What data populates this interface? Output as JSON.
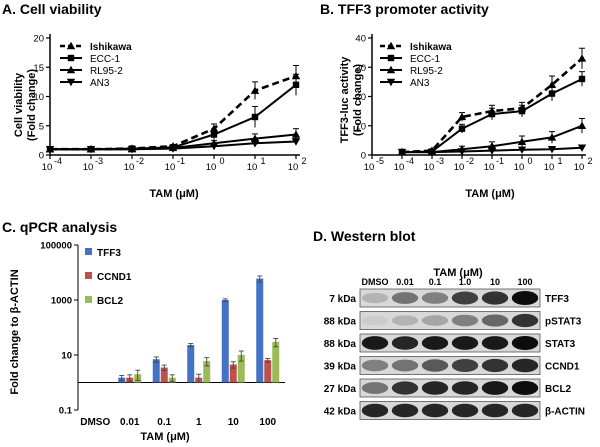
{
  "chart_data": [
    {
      "panel": "A",
      "type": "line",
      "title": "A. Cell viability",
      "xlabel": "TAM (μM)",
      "ylabel_line1": "Cell viability",
      "ylabel_line2": "(Fold change)",
      "xscale": "log",
      "x": [
        0.0001,
        0.001,
        0.01,
        0.1,
        1,
        10,
        100
      ],
      "xticks": [
        "10",
        "10",
        "10",
        "10",
        "10",
        "10",
        "10"
      ],
      "xtick_exps": [
        "-4",
        "-3",
        "-2",
        "-1",
        "0",
        "1",
        "2"
      ],
      "ylim": [
        0,
        20
      ],
      "yticks": [
        "0",
        "5",
        "10",
        "15",
        "20"
      ],
      "legend_position": "top-left",
      "series": [
        {
          "name": "Ishikawa",
          "style": "dashed",
          "marker": "triangle",
          "values": [
            1.0,
            1.0,
            1.1,
            1.5,
            4.5,
            11.0,
            13.5
          ],
          "errors": [
            0.2,
            0.2,
            0.2,
            0.3,
            0.8,
            1.5,
            1.8
          ]
        },
        {
          "name": "ECC-1",
          "style": "solid",
          "marker": "square",
          "values": [
            1.0,
            1.0,
            1.1,
            1.3,
            3.5,
            6.5,
            12.0
          ],
          "errors": [
            0.2,
            0.2,
            0.2,
            0.3,
            0.8,
            1.8,
            1.8
          ]
        },
        {
          "name": "RL95-2",
          "style": "solid",
          "marker": "triangle",
          "values": [
            1.0,
            1.0,
            1.0,
            1.2,
            2.0,
            2.8,
            3.5
          ],
          "errors": [
            0.2,
            0.2,
            0.2,
            0.3,
            0.5,
            0.8,
            1.0
          ]
        },
        {
          "name": "AN3",
          "style": "solid",
          "marker": "triangle-down",
          "values": [
            1.0,
            1.0,
            1.0,
            1.1,
            1.5,
            2.0,
            2.3
          ],
          "errors": [
            0.2,
            0.2,
            0.2,
            0.2,
            0.3,
            0.4,
            0.5
          ]
        }
      ]
    },
    {
      "panel": "B",
      "type": "line",
      "title": "B. TFF3 promoter activity",
      "xlabel": "TAM (μM)",
      "ylabel_line1": "TFF3-luc activity",
      "ylabel_line2": "(Fold change)",
      "xscale": "log",
      "x": [
        0.0001,
        0.001,
        0.01,
        0.1,
        1,
        10,
        100
      ],
      "xtick_values": [
        -5,
        -4,
        -3,
        -2,
        -1,
        0,
        1,
        2
      ],
      "xticks": [
        "10",
        "10",
        "10",
        "10",
        "10",
        "10",
        "10",
        "10"
      ],
      "xtick_exps": [
        "-5",
        "-4",
        "-3",
        "-2",
        "-1",
        "0",
        "1",
        "2"
      ],
      "ylim": [
        0,
        40
      ],
      "yticks": [
        "0",
        "10",
        "20",
        "30",
        "40"
      ],
      "legend_position": "top-left",
      "series": [
        {
          "name": "Ishikawa",
          "style": "dashed",
          "marker": "triangle",
          "values": [
            1.0,
            1.5,
            13.0,
            15.0,
            16.0,
            24.0,
            33.0
          ],
          "errors": [
            0.3,
            0.5,
            1.5,
            2.0,
            2.0,
            3.0,
            3.5
          ]
        },
        {
          "name": "ECC-1",
          "style": "solid",
          "marker": "square",
          "values": [
            1.0,
            1.2,
            9.0,
            14.0,
            15.0,
            21.0,
            26.0
          ],
          "errors": [
            0.3,
            0.4,
            1.5,
            2.0,
            2.0,
            2.5,
            2.5
          ]
        },
        {
          "name": "RL95-2",
          "style": "solid",
          "marker": "triangle",
          "values": [
            1.0,
            1.0,
            2.0,
            3.0,
            4.5,
            6.0,
            10.0
          ],
          "errors": [
            0.3,
            0.3,
            1.0,
            1.5,
            2.0,
            2.0,
            2.5
          ]
        },
        {
          "name": "AN3",
          "style": "solid",
          "marker": "triangle-down",
          "values": [
            1.0,
            1.0,
            1.2,
            1.5,
            1.8,
            2.0,
            2.5
          ],
          "errors": [
            0.2,
            0.2,
            0.3,
            0.4,
            0.5,
            0.5,
            0.6
          ]
        }
      ]
    },
    {
      "panel": "C",
      "type": "bar",
      "title": "C. qPCR analysis",
      "xlabel": "TAM (μM)",
      "ylabel": "Fold change to β-ACTIN",
      "yscale": "log",
      "ylim": [
        0.1,
        100000
      ],
      "yticks": [
        "0.1",
        "10",
        "1000",
        "100000"
      ],
      "categories": [
        "DMSO",
        "0.01",
        "0.1",
        "1",
        "10",
        "100"
      ],
      "series": [
        {
          "name": "TFF3",
          "color": "#4472C4",
          "values": [
            1,
            1.5,
            7,
            23,
            1000,
            6000
          ],
          "errors": [
            0.1,
            0.3,
            1.5,
            3,
            100,
            1500
          ]
        },
        {
          "name": "CCND1",
          "color": "#C0504D",
          "values": [
            1,
            1.5,
            3.5,
            1.5,
            4.5,
            6.5
          ],
          "errors": [
            0.1,
            0.4,
            0.8,
            0.5,
            1.2,
            1.0
          ]
        },
        {
          "name": "BCL2",
          "color": "#9BBB59",
          "values": [
            1,
            2.0,
            1.5,
            6.0,
            10,
            30
          ],
          "errors": [
            0.1,
            0.8,
            0.4,
            2.0,
            4.0,
            10
          ]
        }
      ]
    }
  ],
  "western": {
    "title": "D. Western blot",
    "tam_label": "TAM (μM)",
    "lanes": [
      "DMSO",
      "0.01",
      "0.1",
      "1.0",
      "10",
      "100"
    ],
    "rows": [
      {
        "kda": "7 kDa",
        "protein": "TFF3",
        "intensities": [
          0.3,
          0.55,
          0.5,
          0.75,
          0.8,
          0.95
        ]
      },
      {
        "kda": "88 kDa",
        "protein": "pSTAT3",
        "intensities": [
          0.2,
          0.3,
          0.35,
          0.5,
          0.6,
          0.8
        ]
      },
      {
        "kda": "88 kDa",
        "protein": "STAT3",
        "intensities": [
          0.9,
          0.85,
          0.9,
          0.9,
          0.9,
          0.95
        ]
      },
      {
        "kda": "39 kDa",
        "protein": "CCND1",
        "intensities": [
          0.5,
          0.55,
          0.65,
          0.75,
          0.8,
          0.85
        ]
      },
      {
        "kda": "27 kDa",
        "protein": "BCL2",
        "intensities": [
          0.55,
          0.8,
          0.85,
          0.85,
          0.9,
          0.95
        ]
      },
      {
        "kda": "42 kDa",
        "protein": "β-ACTIN",
        "intensities": [
          0.85,
          0.85,
          0.85,
          0.85,
          0.85,
          0.85
        ]
      }
    ]
  }
}
